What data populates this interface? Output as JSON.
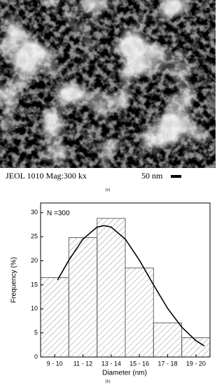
{
  "image": {
    "caption": "JEOL 1010 Mag:300 kx",
    "scale_label": "50 nm",
    "panel_label": "(a)"
  },
  "chart_data": {
    "type": "bar",
    "panel_label": "(b)",
    "annotation": "N =300",
    "xlabel": "Diameter (nm)",
    "ylabel": "Frequency (%)",
    "categories": [
      "9 - 10",
      "11 - 12",
      "13 - 14",
      "15 - 16",
      "17 - 18",
      "19 - 20"
    ],
    "values": [
      16.5,
      24.8,
      28.8,
      18.5,
      7.1,
      4.0
    ],
    "color": "#666666",
    "fit_curve": {
      "color": "#000000",
      "x": [
        9.7,
        10.5,
        11.5,
        12.5,
        13,
        13.5,
        14.5,
        15.5,
        16.5,
        17.5,
        18.5,
        19.5,
        20.1
      ],
      "values": [
        16.0,
        20.1,
        24.5,
        27.0,
        27.3,
        27.0,
        24.5,
        20.1,
        15.0,
        10.1,
        6.2,
        3.4,
        2.3
      ]
    },
    "ylim": [
      0,
      32
    ],
    "yticks": [
      0,
      5,
      10,
      15,
      20,
      25,
      30
    ]
  }
}
